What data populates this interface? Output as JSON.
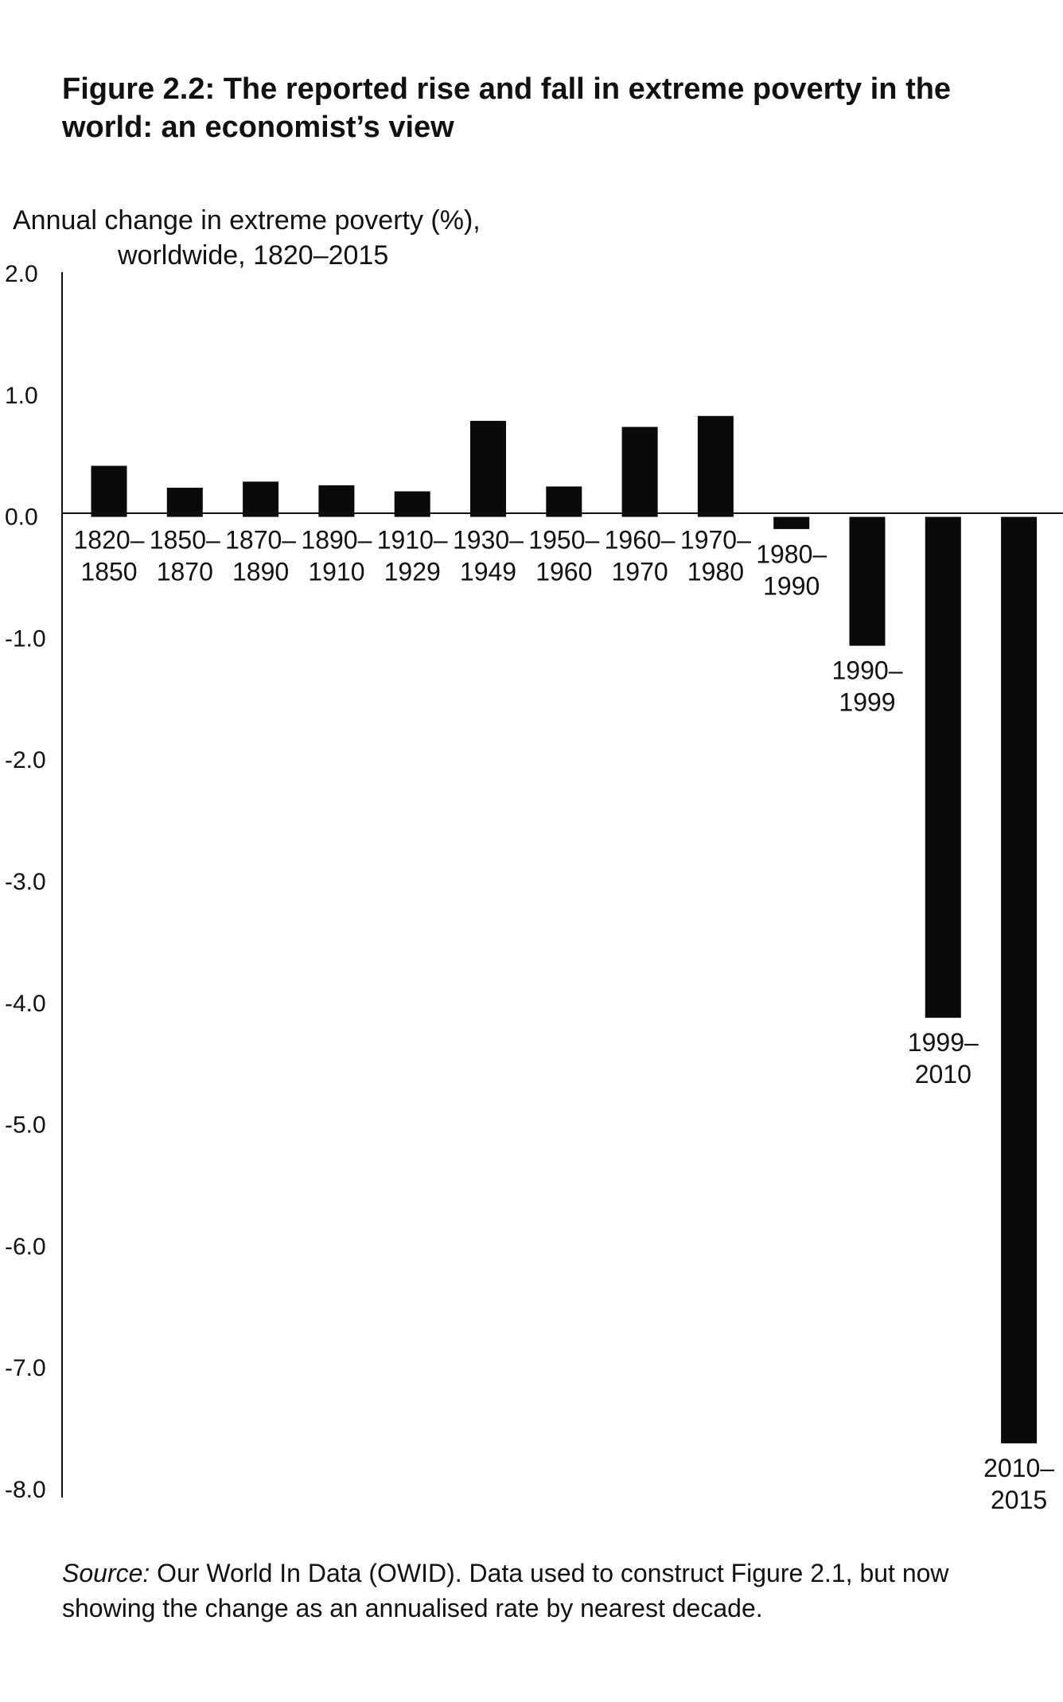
{
  "figure": {
    "title": "Figure 2.2: The reported rise and fall in extreme poverty in the world: an economist’s view",
    "source_label": "Source:",
    "source_text": " Our World In Data (OWID). Data used to construct Figure 2.1, but now showing the change as an annualised rate by nearest decade."
  },
  "chart_data": {
    "type": "bar",
    "title": "",
    "ylabel_line1": "Annual change in extreme poverty (%),",
    "ylabel_line2": "worldwide, 1820–2015",
    "ylim": [
      -8.0,
      2.0
    ],
    "yticks": [
      "2.0",
      "1.0",
      "0.0",
      "-1.0",
      "-2.0",
      "-3.0",
      "-4.0",
      "-5.0",
      "-6.0",
      "-7.0",
      "-8.0"
    ],
    "grid": false,
    "bar_color": "#0a0a0a",
    "categories": [
      [
        "1820–",
        "1850"
      ],
      [
        "1850–",
        "1870"
      ],
      [
        "1870–",
        "1890"
      ],
      [
        "1890–",
        "1910"
      ],
      [
        "1910–",
        "1929"
      ],
      [
        "1930–",
        "1949"
      ],
      [
        "1950–",
        "1960"
      ],
      [
        "1960–",
        "1970"
      ],
      [
        "1970–",
        "1980"
      ],
      [
        "1980–",
        "1990"
      ],
      [
        "1990–",
        "1999"
      ],
      [
        "1999–",
        "2010"
      ],
      [
        "2010–",
        "2015"
      ]
    ],
    "values": [
      0.42,
      0.24,
      0.29,
      0.26,
      0.21,
      0.79,
      0.25,
      0.74,
      0.83,
      -0.1,
      -1.06,
      -4.12,
      -7.62
    ]
  }
}
